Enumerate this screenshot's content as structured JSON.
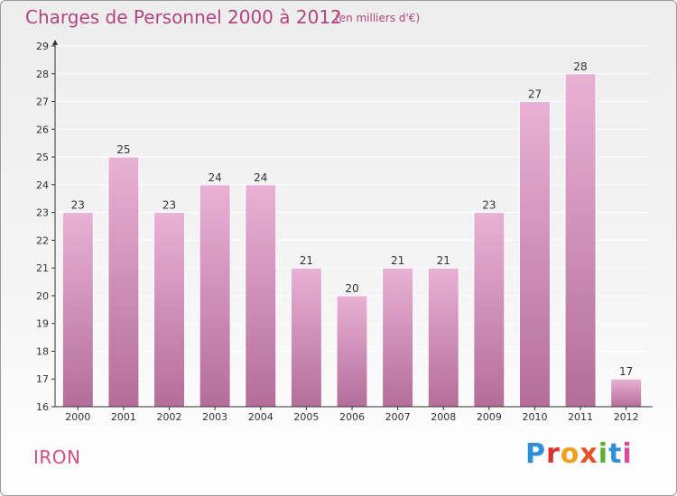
{
  "header": {
    "title": "Charges de Personnel 2000 à 2012",
    "subtitle": "(en milliers d'€)"
  },
  "footer": {
    "location": "IRON",
    "logo_text": "Proxiti",
    "logo_colors": [
      "#2f8fd8",
      "#d9302a",
      "#f0a020",
      "#e8502a",
      "#5cb030",
      "#2f8fd8",
      "#d94a9a"
    ]
  },
  "colors": {
    "bar_light": "#e9b1d5",
    "bar_dark": "#b46e98",
    "axis": "#333333",
    "grid": "#ffffff",
    "title": "#b2457e"
  },
  "chart_data": {
    "type": "bar",
    "title": "Charges de Personnel 2000 à 2012",
    "subtitle": "(en milliers d'€)",
    "categories": [
      "2000",
      "2001",
      "2002",
      "2003",
      "2004",
      "2005",
      "2006",
      "2007",
      "2008",
      "2009",
      "2010",
      "2011",
      "2012"
    ],
    "values": [
      23,
      25,
      23,
      24,
      24,
      21,
      20,
      21,
      21,
      23,
      27,
      28,
      17
    ],
    "ylim": [
      16,
      29
    ],
    "yticks": [
      16,
      17,
      18,
      19,
      20,
      21,
      22,
      23,
      24,
      25,
      26,
      27,
      28,
      29
    ],
    "grid": true,
    "data_labels": true
  }
}
